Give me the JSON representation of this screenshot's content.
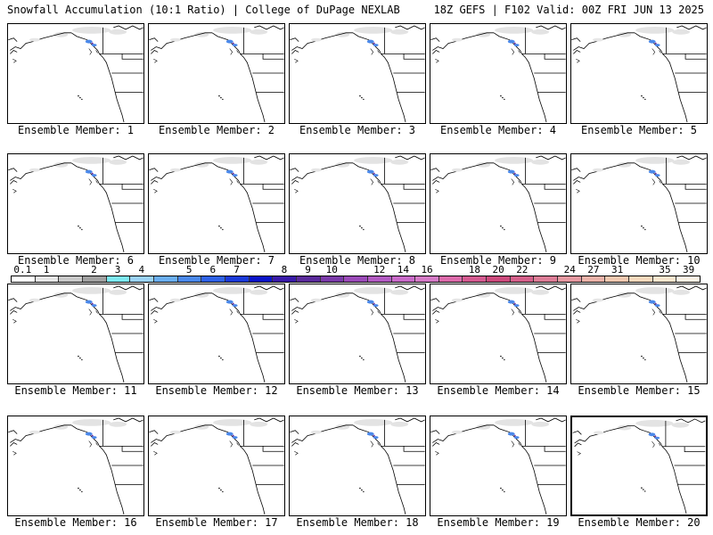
{
  "header": {
    "left": "Snowfall Accumulation (10:1 Ratio) | College of DuPage NEXLAB",
    "right": "18Z GEFS | F102 Valid: 00Z FRI JUN 13 2025"
  },
  "members": [
    {
      "label": "Ensemble Member: 1"
    },
    {
      "label": "Ensemble Member: 2"
    },
    {
      "label": "Ensemble Member: 3"
    },
    {
      "label": "Ensemble Member: 4"
    },
    {
      "label": "Ensemble Member: 5"
    },
    {
      "label": "Ensemble Member: 6"
    },
    {
      "label": "Ensemble Member: 7"
    },
    {
      "label": "Ensemble Member: 8"
    },
    {
      "label": "Ensemble Member: 9"
    },
    {
      "label": "Ensemble Member: 10"
    },
    {
      "label": "Ensemble Member: 11"
    },
    {
      "label": "Ensemble Member: 12"
    },
    {
      "label": "Ensemble Member: 13"
    },
    {
      "label": "Ensemble Member: 14"
    },
    {
      "label": "Ensemble Member: 15"
    },
    {
      "label": "Ensemble Member: 16"
    },
    {
      "label": "Ensemble Member: 17"
    },
    {
      "label": "Ensemble Member: 18"
    },
    {
      "label": "Ensemble Member: 19"
    },
    {
      "label": "Ensemble Member: 20"
    }
  ],
  "selected_member": 20,
  "colorbar": {
    "labels": [
      "0.1",
      "1",
      "2",
      "3",
      "4",
      "5",
      "6",
      "7",
      "8",
      "9",
      "10",
      "12",
      "14",
      "16",
      "18",
      "20",
      "22",
      "24",
      "27",
      "31",
      "35",
      "39"
    ],
    "colors": [
      "#ffffff",
      "#e6e6e6",
      "#c8c8c8",
      "#a0a0a0",
      "#7ce8f0",
      "#9ad2f5",
      "#6aaef0",
      "#4a88ea",
      "#2f62e6",
      "#1a3ad8",
      "#0a14c8",
      "#3a1aa8",
      "#5a2a9a",
      "#7a3aa8",
      "#9a4ab8",
      "#b25ac2",
      "#c86ac8",
      "#d47ac6",
      "#dc6aaa",
      "#d45a90",
      "#cc4a7c",
      "#d4608a",
      "#dc7c96",
      "#e498a0",
      "#eab2a8",
      "#f0c8b0",
      "#f5d8bc",
      "#f8e6ce",
      "#fbf2e4"
    ]
  }
}
